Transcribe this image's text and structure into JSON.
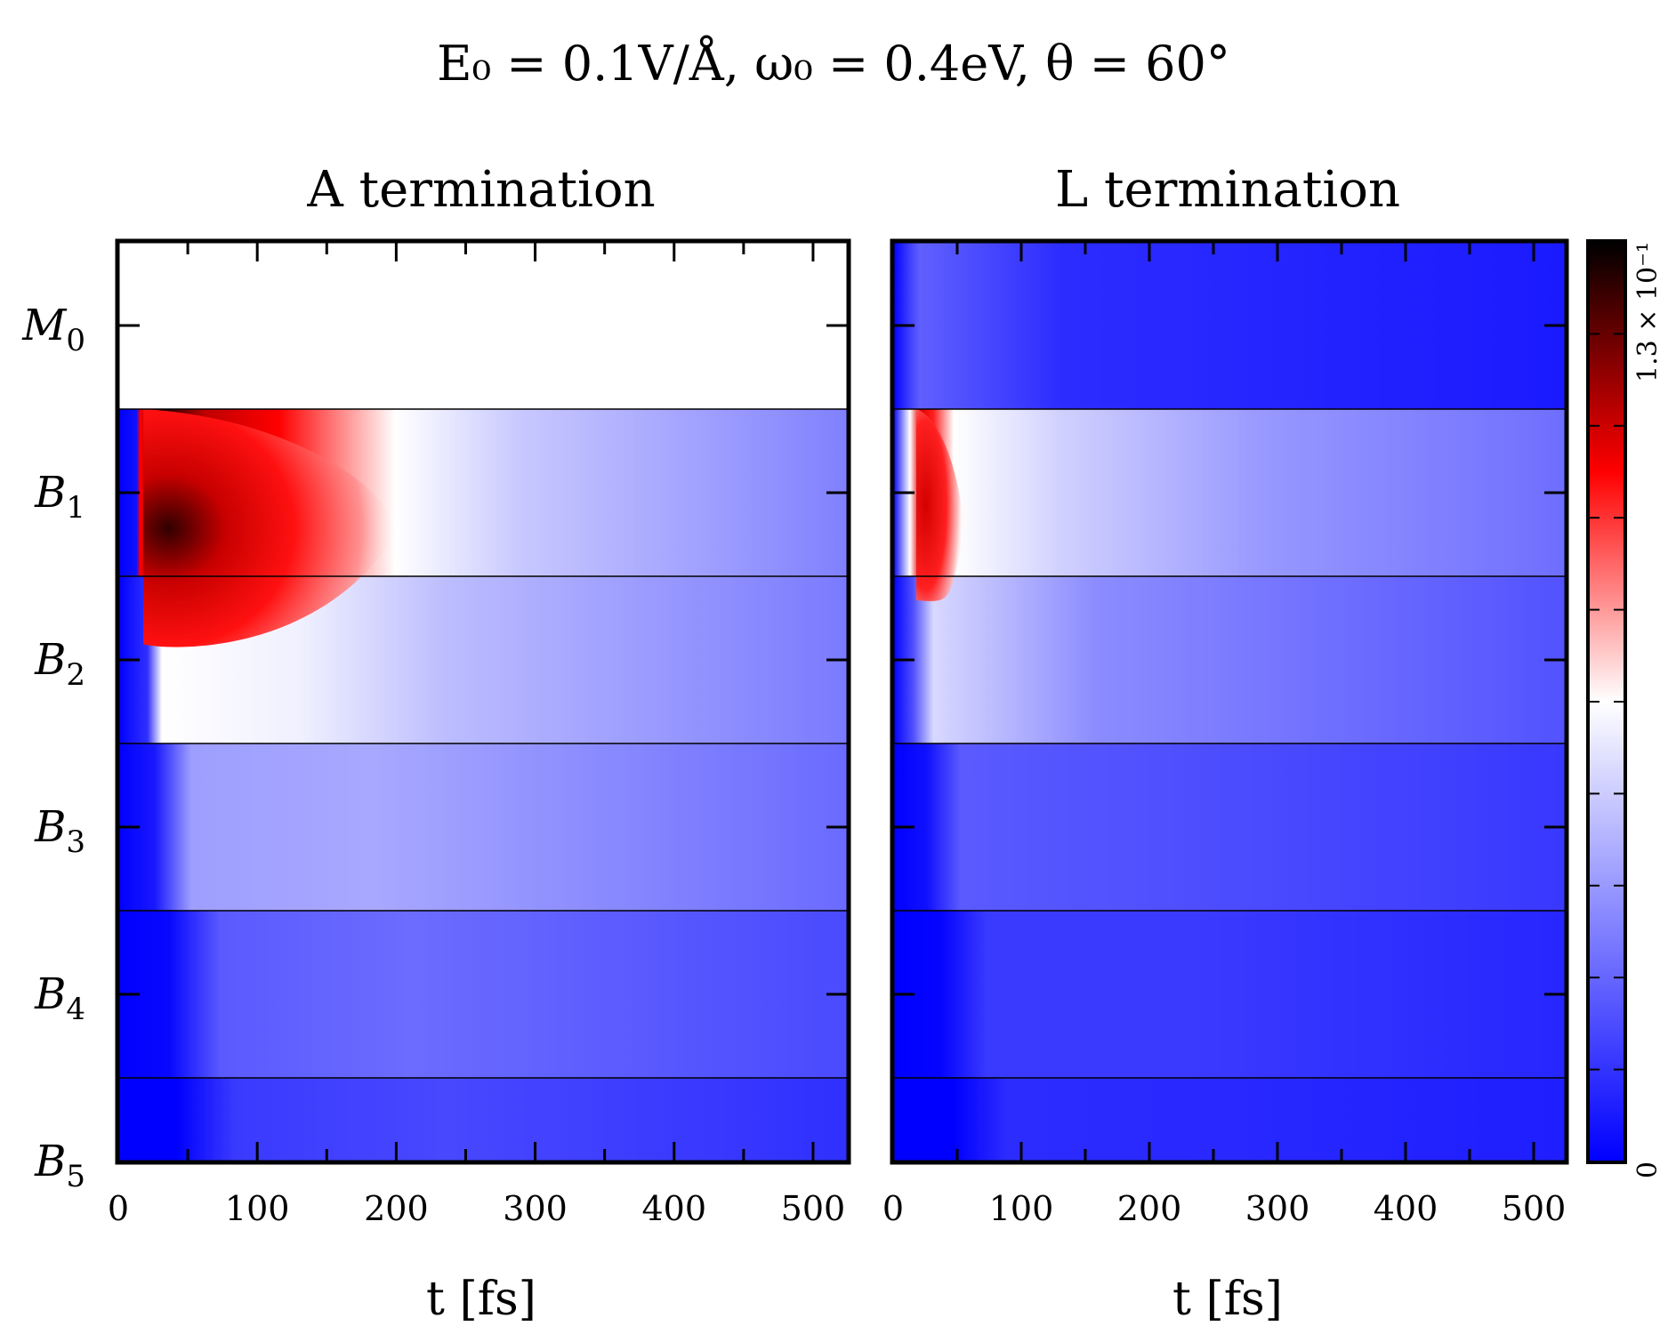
{
  "figure_title": "E₀ = 0.1V/Å,  ω₀ = 0.4eV,  θ = 60°",
  "colorbar": {
    "min_label": "0",
    "max_label": "1.3 × 10⁻¹",
    "colors": [
      "#0000ff",
      "#ffffff",
      "#ff0000",
      "#000000"
    ]
  },
  "chart_data": [
    {
      "type": "heatmap",
      "title": "A termination",
      "xlabel": "t [fs]",
      "ylabel": "",
      "xlim": [
        0,
        525
      ],
      "x_ticks": [
        0,
        100,
        200,
        300,
        400,
        500
      ],
      "rows": [
        "M₀",
        "B₁",
        "B₂",
        "B₃",
        "B₄",
        "B₅"
      ],
      "row_ticks": [
        {
          "main": "M",
          "sub": "0"
        },
        {
          "main": "B",
          "sub": "1"
        },
        {
          "main": "B",
          "sub": "2"
        },
        {
          "main": "B",
          "sub": "3"
        },
        {
          "main": "B",
          "sub": "4"
        },
        {
          "main": "B",
          "sub": "5"
        }
      ],
      "value_range": [
        0,
        0.13
      ],
      "hotspot": {
        "row": "B₁",
        "t_start": 18,
        "t_peak": 25,
        "t_extent": 200,
        "peak_value": 0.13
      },
      "M0_region": "white"
    },
    {
      "type": "heatmap",
      "title": "L termination",
      "xlabel": "t [fs]",
      "ylabel": "",
      "xlim": [
        0,
        525
      ],
      "x_ticks": [
        0,
        100,
        200,
        300,
        400,
        500
      ],
      "rows": [
        "M₀",
        "B₁",
        "B₂",
        "B₃",
        "B₄",
        "B₅"
      ],
      "value_range": [
        0,
        0.13
      ],
      "hotspot": {
        "row": "B₁",
        "t_start": 18,
        "t_peak": 25,
        "t_extent": 55,
        "peak_value": 0.075
      },
      "M0_region": "blue"
    }
  ]
}
